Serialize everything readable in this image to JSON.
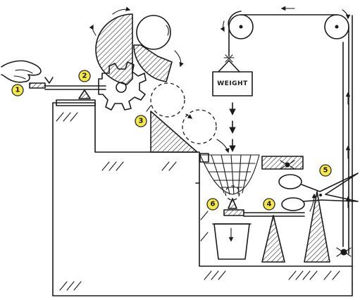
{
  "badge_color": "#f4e84a",
  "ink_color": "#1a1a1a",
  "weight_label": "WEIGHT",
  "badges": [
    {
      "label": "1",
      "name": "step-1-badge"
    },
    {
      "label": "2",
      "name": "step-2-badge"
    },
    {
      "label": "3",
      "name": "step-3-badge"
    },
    {
      "label": "4",
      "name": "step-4-badge"
    },
    {
      "label": "5",
      "name": "step-5-badge"
    },
    {
      "label": "6",
      "name": "step-6-badge"
    }
  ]
}
